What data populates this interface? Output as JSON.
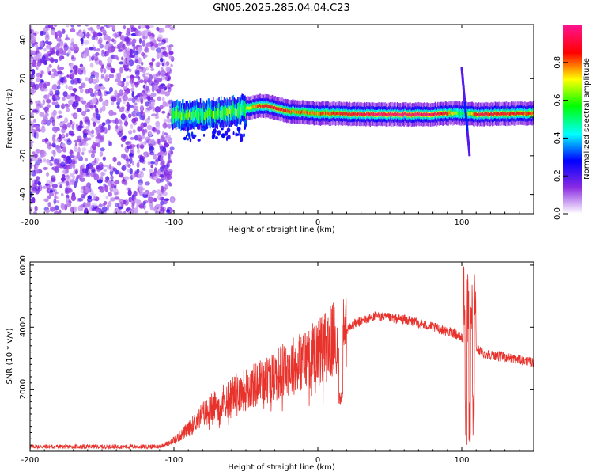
{
  "title": "GN05.2025.285.04.04.C23",
  "chart_data": [
    {
      "type": "heatmap",
      "name": "spectrogram",
      "xlabel": "Height of straight line (km)",
      "ylabel": "Frequency (Hz)",
      "xlim": [
        -200,
        150
      ],
      "ylim": [
        -50,
        48
      ],
      "xticks": [
        -200,
        -100,
        0,
        100
      ],
      "yticks": [
        -40,
        -20,
        0,
        20,
        40
      ],
      "colorbar": {
        "label": "Normalized spectral amplitude",
        "range": [
          0.0,
          1.0
        ],
        "ticks": [
          0.0,
          0.2,
          0.4,
          0.6,
          0.8
        ],
        "colors": [
          "#ffffff",
          "#8a2be2",
          "#0000ff",
          "#00ffff",
          "#00ff00",
          "#ffff00",
          "#ff0000",
          "#ff1493"
        ]
      },
      "noise_region_x": [
        -200,
        -101
      ],
      "ridge": [
        {
          "x": -100,
          "y": 1.0,
          "amp": 0.3
        },
        {
          "x": -80,
          "y": 1.5,
          "amp": 0.35
        },
        {
          "x": -60,
          "y": 3.0,
          "amp": 0.45
        },
        {
          "x": -40,
          "y": 6.0,
          "amp": 0.85
        },
        {
          "x": -30,
          "y": 5.0,
          "amp": 0.9
        },
        {
          "x": -20,
          "y": 3.0,
          "amp": 0.8
        },
        {
          "x": 0,
          "y": 2.0,
          "amp": 0.8
        },
        {
          "x": 40,
          "y": 1.5,
          "amp": 0.95
        },
        {
          "x": 80,
          "y": 1.5,
          "amp": 0.95
        },
        {
          "x": 90,
          "y": 2.0,
          "amp": 0.85
        },
        {
          "x": 100,
          "y": 2.0,
          "amp": 0.5
        },
        {
          "x": 110,
          "y": 1.5,
          "amp": 0.9
        },
        {
          "x": 150,
          "y": 2.0,
          "amp": 0.85
        }
      ],
      "transient": {
        "x": 103,
        "y_range": [
          -20,
          25
        ]
      }
    },
    {
      "type": "line",
      "name": "snr",
      "xlabel": "Height of straight line (km)",
      "ylabel": "SNR (10 * v/v)",
      "xlim": [
        -200,
        150
      ],
      "ylim": [
        0,
        6100
      ],
      "xticks": [
        -200,
        -100,
        0,
        100
      ],
      "yticks": [
        2000,
        4000,
        6000
      ],
      "color": "#e8322c",
      "envelope": [
        {
          "x": -200,
          "y": 150
        },
        {
          "x": -110,
          "y": 150
        },
        {
          "x": -100,
          "y": 350
        },
        {
          "x": -90,
          "y": 700
        },
        {
          "x": -80,
          "y": 1200
        },
        {
          "x": -60,
          "y": 1800
        },
        {
          "x": -40,
          "y": 2200
        },
        {
          "x": -20,
          "y": 2700
        },
        {
          "x": 0,
          "y": 3200
        },
        {
          "x": 15,
          "y": 3700
        },
        {
          "x": 25,
          "y": 4100
        },
        {
          "x": 40,
          "y": 4350
        },
        {
          "x": 60,
          "y": 4250
        },
        {
          "x": 80,
          "y": 4000
        },
        {
          "x": 95,
          "y": 3800
        },
        {
          "x": 105,
          "y": 3500
        },
        {
          "x": 115,
          "y": 3150
        },
        {
          "x": 135,
          "y": 3000
        },
        {
          "x": 150,
          "y": 2850
        }
      ],
      "features": [
        {
          "x": 16,
          "y": 1500,
          "note": "dip"
        },
        {
          "x": 104,
          "y": 6000,
          "note": "peak"
        },
        {
          "x": 107,
          "y": 100,
          "note": "dip"
        }
      ]
    }
  ]
}
